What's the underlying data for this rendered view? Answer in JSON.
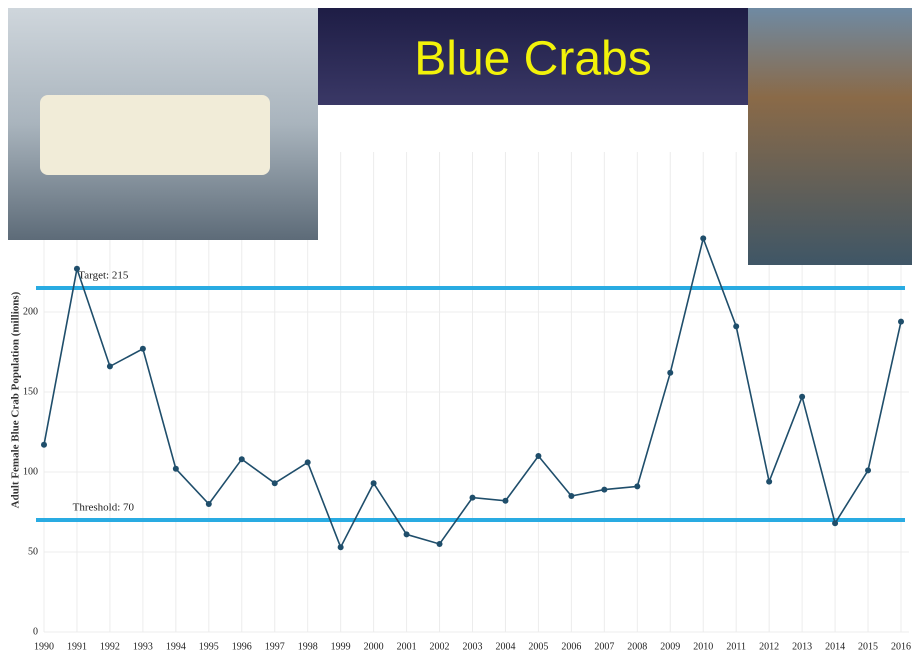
{
  "chart_data": {
    "type": "line",
    "title": "Blue Crabs",
    "y_label": "Adult Female Blue Crab Population (millions)",
    "x": [
      1990,
      1991,
      1992,
      1993,
      1994,
      1995,
      1996,
      1997,
      1998,
      1999,
      2000,
      2001,
      2002,
      2003,
      2004,
      2005,
      2006,
      2007,
      2008,
      2009,
      2010,
      2011,
      2012,
      2013,
      2014,
      2015,
      2016
    ],
    "values": [
      117,
      227,
      166,
      177,
      102,
      80,
      108,
      93,
      106,
      53,
      93,
      61,
      55,
      84,
      82,
      110,
      85,
      89,
      91,
      162,
      246,
      191,
      94,
      147,
      68,
      101,
      194
    ],
    "color": "#1f4e6b",
    "xlim": [
      1990,
      2016
    ],
    "xticks": [
      1990,
      1991,
      1992,
      1993,
      1994,
      1995,
      1996,
      1997,
      1998,
      1999,
      2000,
      2001,
      2002,
      2003,
      2004,
      2005,
      2006,
      2007,
      2008,
      2009,
      2010,
      2011,
      2012,
      2013,
      2014,
      2015,
      2016
    ],
    "ylim": [
      0,
      300
    ],
    "yticks": [
      0,
      50,
      100,
      150,
      200
    ],
    "grid": true,
    "reference_lines": [
      {
        "label": "Target: 215",
        "value": 215,
        "color": "#29abe2"
      },
      {
        "label": "Threshold: 70",
        "value": 70,
        "color": "#29abe2"
      }
    ]
  }
}
